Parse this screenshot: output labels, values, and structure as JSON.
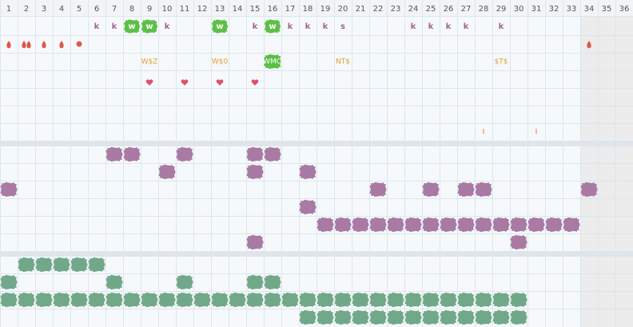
{
  "header": {
    "columns": [
      1,
      2,
      3,
      4,
      5,
      6,
      7,
      8,
      9,
      10,
      11,
      12,
      13,
      14,
      15,
      16,
      17,
      18,
      19,
      20,
      21,
      22,
      23,
      24,
      25,
      26,
      27,
      28,
      29,
      30,
      31,
      32,
      33,
      34,
      35,
      36
    ]
  },
  "markers": {
    "row1": [
      "k",
      "k",
      "w",
      "w",
      "k",
      "w",
      "k",
      "w",
      "k",
      "k",
      "k",
      "s",
      "k",
      "k",
      "k",
      "k",
      "k"
    ],
    "row3": [
      "W$Z",
      "W$0",
      "WMO",
      "NT$",
      "$T$"
    ],
    "row7": [
      "I",
      "I"
    ]
  }
}
